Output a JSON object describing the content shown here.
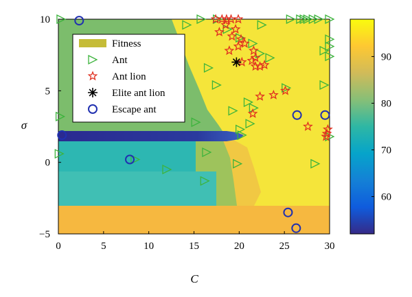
{
  "chart_data": {
    "type": "scatter",
    "title": "",
    "xlabel": "C",
    "ylabel": "σ",
    "xlim": [
      0,
      30
    ],
    "ylim": [
      -5,
      10
    ],
    "xticks": [
      "0",
      "5",
      "10",
      "15",
      "20",
      "25",
      "30"
    ],
    "yticks": [
      "−5",
      "0",
      "5",
      "10"
    ],
    "colorbar": {
      "min": 52,
      "max": 98,
      "ticks": [
        "60",
        "70",
        "80",
        "90"
      ],
      "tick_values": [
        60,
        70,
        80,
        90
      ],
      "colormap": "parula"
    },
    "legend": {
      "placement": "upper-left",
      "entries": [
        "Fitness",
        "Ant",
        "Ant lion",
        "Elite ant lion",
        "Escape ant"
      ]
    },
    "background_fitness_regions": [
      {
        "region": "lower band",
        "sigma": [
          -5,
          -3.2
        ],
        "fitness": 90
      },
      {
        "region": "cyan band",
        "sigma": [
          -3.2,
          0
        ],
        "fitness": 74
      },
      {
        "region": "dark stripe",
        "sigma": [
          1.5,
          2.2
        ],
        "fitness": 55
      },
      {
        "region": "upper-left wedge",
        "fitness": 80
      },
      {
        "region": "right area",
        "fitness": 95
      }
    ],
    "series": [
      {
        "name": "Ant",
        "marker": "triangle-right",
        "color": "#3cb33c",
        "points": [
          [
            0.3,
            10
          ],
          [
            0.2,
            3.2
          ],
          [
            0.1,
            0.6
          ],
          [
            8.5,
            0.2
          ],
          [
            12,
            -0.5
          ],
          [
            14.2,
            9.6
          ],
          [
            15.8,
            10
          ],
          [
            16.6,
            6.6
          ],
          [
            17.6,
            10
          ],
          [
            18.7,
            9.3
          ],
          [
            17.5,
            5.4
          ],
          [
            19.3,
            3.6
          ],
          [
            20.3,
            1.9
          ],
          [
            20.1,
            8.7
          ],
          [
            21.5,
            8.3
          ],
          [
            22.3,
            7.6
          ],
          [
            22.5,
            9.6
          ],
          [
            23.4,
            7.3
          ],
          [
            21,
            4.2
          ],
          [
            21.6,
            3.8
          ],
          [
            21.2,
            2.7
          ],
          [
            19.8,
            -0.1
          ],
          [
            16.4,
            0.7
          ],
          [
            16.2,
            -1.3
          ],
          [
            15.2,
            2.8
          ],
          [
            20.1,
            2.3
          ],
          [
            25.2,
            5.2
          ],
          [
            25.7,
            10
          ],
          [
            26.8,
            10
          ],
          [
            27.2,
            10
          ],
          [
            27.6,
            10
          ],
          [
            28.2,
            10
          ],
          [
            28.8,
            10
          ],
          [
            30,
            10
          ],
          [
            30,
            8.6
          ],
          [
            30,
            8.1
          ],
          [
            29.4,
            7.8
          ],
          [
            30,
            7.4
          ],
          [
            29.4,
            5.4
          ],
          [
            30,
            1.8
          ],
          [
            28.4,
            -0.1
          ]
        ]
      },
      {
        "name": "Ant lion",
        "marker": "star",
        "color": "#e03020",
        "points": [
          [
            17.4,
            10
          ],
          [
            18.1,
            10
          ],
          [
            18.6,
            10
          ],
          [
            19.1,
            10
          ],
          [
            19.9,
            10
          ],
          [
            18.5,
            9.6
          ],
          [
            19.6,
            9.3
          ],
          [
            17.8,
            9.1
          ],
          [
            19.2,
            8.8
          ],
          [
            20.2,
            8.6
          ],
          [
            20.6,
            8.3
          ],
          [
            19.9,
            8.1
          ],
          [
            18.9,
            7.8
          ],
          [
            21.6,
            7.8
          ],
          [
            21.8,
            7.3
          ],
          [
            21.4,
            7.1
          ],
          [
            20.3,
            7
          ],
          [
            21.8,
            6.7
          ],
          [
            22.3,
            6.7
          ],
          [
            22.8,
            6.8
          ],
          [
            22.3,
            4.6
          ],
          [
            23.8,
            4.7
          ],
          [
            25.1,
            5
          ],
          [
            21.5,
            3.4
          ],
          [
            27.6,
            2.5
          ],
          [
            29.8,
            2.3
          ],
          [
            29.7,
            2
          ],
          [
            29.6,
            1.8
          ]
        ]
      },
      {
        "name": "Elite ant lion",
        "marker": "asterisk",
        "color": "#000000",
        "points": [
          [
            19.7,
            7
          ]
        ]
      },
      {
        "name": "Escape ant",
        "marker": "circle",
        "color": "#2030b0",
        "points": [
          [
            2.3,
            9.9
          ],
          [
            0.4,
            1.9
          ],
          [
            7.9,
            0.2
          ],
          [
            26.4,
            3.3
          ],
          [
            29.5,
            3.3
          ],
          [
            25.4,
            -3.5
          ],
          [
            26.3,
            -4.6
          ]
        ]
      }
    ]
  }
}
